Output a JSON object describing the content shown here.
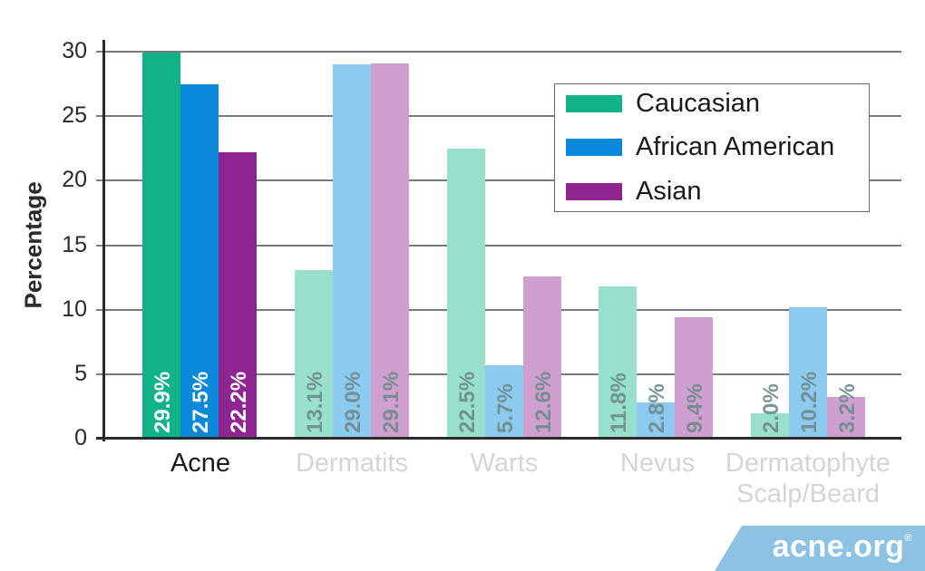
{
  "chart_data": {
    "type": "bar",
    "title": "",
    "xlabel": "",
    "ylabel": "Percentage",
    "ylim": [
      0,
      30
    ],
    "yticks": [
      0,
      5,
      10,
      15,
      20,
      25,
      30
    ],
    "grid": true,
    "legend_position": "upper right",
    "categories": [
      "Acne",
      "Dermatits",
      "Warts",
      "Nevus",
      "Dermatophyte Scalp/Beard"
    ],
    "highlighted_category": "Acne",
    "series": [
      {
        "name": "Caucasian",
        "values": [
          29.9,
          13.1,
          22.5,
          11.8,
          2.0
        ],
        "labels": [
          "29.9%",
          "13.1%",
          "22.5%",
          "11.8%",
          "2.0%"
        ],
        "color": "#10b388",
        "faded_color": "#98e0cb"
      },
      {
        "name": "African American",
        "values": [
          27.5,
          29.0,
          5.7,
          2.8,
          10.2
        ],
        "labels": [
          "27.5%",
          "29.0%",
          "5.7%",
          "2.8%",
          "10.2%"
        ],
        "color": "#0a88d9",
        "faded_color": "#8ccbef"
      },
      {
        "name": "Asian",
        "values": [
          22.2,
          29.1,
          12.6,
          9.4,
          3.2
        ],
        "labels": [
          "22.2%",
          "29.1%",
          "12.6%",
          "9.4%",
          "3.2%"
        ],
        "color": "#8f2591",
        "faded_color": "#cf9fd0"
      }
    ]
  },
  "axis": {
    "ylabel": "Percentage",
    "ytick_labels": [
      "0",
      "5",
      "10",
      "15",
      "20",
      "25",
      "30"
    ]
  },
  "categories": {
    "acne": "Acne",
    "dermatitis": "Dermatits",
    "warts": "Warts",
    "nevus": "Nevus",
    "dermatophyte_line1": "Dermatophyte",
    "dermatophyte_line2": "Scalp/Beard"
  },
  "legend": {
    "items": [
      {
        "label": "Caucasian",
        "color": "#10b388"
      },
      {
        "label": "African American",
        "color": "#0a88d9"
      },
      {
        "label": "Asian",
        "color": "#8f2591"
      }
    ]
  },
  "logo": {
    "text": "acne.org",
    "mark": "®",
    "color": "#8cc2e3"
  },
  "colors": {
    "label_on_active": "#ffffff",
    "label_on_faded": "#6e8a8c",
    "category_active": "#1a1a1a",
    "category_faded": "#d5d5d5"
  }
}
